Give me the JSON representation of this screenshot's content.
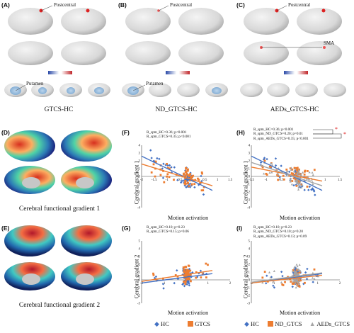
{
  "panels": {
    "A": {
      "label": "(A)",
      "region_top": "Postcentral",
      "region_bottom": "Putamen",
      "caption": "GTCS-HC"
    },
    "B": {
      "label": "(B)",
      "region_top": "Postcentral",
      "region_bottom": "Putamen",
      "caption": "ND_GTCS-HC"
    },
    "C": {
      "label": "(C)",
      "region_top": "Postcentral",
      "region_mid": "SMA",
      "caption": "AEDs_GTCS-HC"
    },
    "D": {
      "label": "(D)",
      "caption": "Cerebral functional gradient 1"
    },
    "E": {
      "label": "(E)",
      "caption": "Cerebral functional gradient 2"
    },
    "F": {
      "label": "(F)",
      "ylabel": "Cerebral gradient 1",
      "xlabel": "Motion activation",
      "stats": [
        "R_spm_HC=0.36; p<0.001",
        "R_spm_GTCS=0.35; p<0.001"
      ]
    },
    "G": {
      "label": "(G)",
      "ylabel": "Cerebral gradient 2",
      "xlabel": "Motion activation",
      "stats": [
        "R_spm_HC=0.10; p=0.23",
        "R_spm_GTCS=0.15; p=0.06"
      ]
    },
    "H": {
      "label": "(H)",
      "ylabel": "Cerebral gradient 1",
      "xlabel": "Motion activation",
      "stats": [
        "R_spm_HC=0.36; p<0.001",
        "R_spm_ND_GTCS=0.20; p=0.01",
        "R_spm_AEDs_GTCS=0.35; p<0.001"
      ],
      "sig": "*"
    },
    "I": {
      "label": "(I)",
      "ylabel": "Cerebral gradient 2",
      "xlabel": "Motion activation",
      "stats": [
        "R_spm_HC=0.10; p=0.23",
        "R_spm_ND_GTCS=0.10; p=0.20",
        "R_spm_AEDs_GTCS=0.13; p=0.09"
      ]
    }
  },
  "legend_left": [
    {
      "marker": "diamond",
      "color": "#4472c4",
      "label": "HC"
    },
    {
      "marker": "square",
      "color": "#ed7d31",
      "label": "GTCS"
    }
  ],
  "legend_right": [
    {
      "marker": "diamond",
      "color": "#4472c4",
      "label": "HC"
    },
    {
      "marker": "square",
      "color": "#ed7d31",
      "label": "ND_GTCS"
    },
    {
      "marker": "triangle",
      "color": "#a5a5a5",
      "label": "AEDs_GTCS"
    }
  ],
  "colors": {
    "hc": "#4472c4",
    "gtcs": "#ed7d31",
    "aeds": "#a5a5a5"
  },
  "chart_data": [
    {
      "panel": "F",
      "type": "scatter",
      "xlim": [
        -2,
        2
      ],
      "ylim": [
        -4,
        4
      ],
      "xticks": [
        "-2",
        "-1.5",
        "-1",
        "-0.5",
        "0",
        "0.5",
        "1",
        "1.5"
      ],
      "yticks": [
        "4",
        "3",
        "2",
        "1",
        "0",
        "-1",
        "-2",
        "-3",
        "-4"
      ],
      "series": [
        {
          "name": "HC",
          "fit": [
            [
              -2,
              2.6
            ],
            [
              1.2,
              -1.8
            ]
          ]
        },
        {
          "name": "GTCS",
          "fit": [
            [
              -2,
              1.6
            ],
            [
              1.2,
              -1.2
            ]
          ]
        }
      ]
    },
    {
      "panel": "G",
      "type": "scatter",
      "xlim": [
        -2,
        2
      ],
      "ylim": [
        -3,
        5
      ],
      "xticks": [
        "-2",
        "-1",
        "0",
        "1",
        "2"
      ],
      "yticks": [
        "5",
        "4",
        "3",
        "2",
        "1",
        "0",
        "-1",
        "-2",
        "-3"
      ],
      "series": [
        {
          "name": "HC",
          "fit": [
            [
              -2,
              -0.4
            ],
            [
              1.2,
              0.8
            ]
          ]
        },
        {
          "name": "GTCS",
          "fit": [
            [
              -2,
              -0.2
            ],
            [
              1.2,
              1.2
            ]
          ]
        }
      ]
    },
    {
      "panel": "H",
      "type": "scatter",
      "xlim": [
        -2,
        2
      ],
      "ylim": [
        -4,
        4
      ],
      "xticks": [
        "-1.5",
        "-1",
        "-0.5",
        "0",
        "0.5",
        "1",
        "1.5"
      ],
      "yticks": [
        "4",
        "3",
        "2",
        "1",
        "0",
        "-1",
        "-2",
        "-3",
        "-4"
      ],
      "series": [
        {
          "name": "HC",
          "fit": [
            [
              -2,
              2.6
            ],
            [
              1.2,
              -1.8
            ]
          ]
        },
        {
          "name": "ND_GTCS",
          "fit": [
            [
              -2,
              1.2
            ],
            [
              1.2,
              -0.6
            ]
          ]
        },
        {
          "name": "AEDs_GTCS",
          "fit": [
            [
              -2,
              1.8
            ],
            [
              1.2,
              -1.2
            ]
          ]
        }
      ]
    },
    {
      "panel": "I",
      "type": "scatter",
      "xlim": [
        -2,
        2
      ],
      "ylim": [
        -3,
        5
      ],
      "xticks": [
        "-2",
        "-1",
        "0",
        "1",
        "2"
      ],
      "yticks": [
        "5",
        "4",
        "3",
        "2",
        "1",
        "0",
        "-1",
        "-2",
        "-3"
      ],
      "series": [
        {
          "name": "HC",
          "fit": [
            [
              -2,
              -0.4
            ],
            [
              1.2,
              0.8
            ]
          ]
        },
        {
          "name": "ND_GTCS",
          "fit": [
            [
              -2,
              -0.4
            ],
            [
              1.2,
              0.6
            ]
          ]
        },
        {
          "name": "AEDs_GTCS",
          "fit": [
            [
              -2,
              -0.3
            ],
            [
              1.2,
              0.9
            ]
          ]
        }
      ]
    }
  ]
}
